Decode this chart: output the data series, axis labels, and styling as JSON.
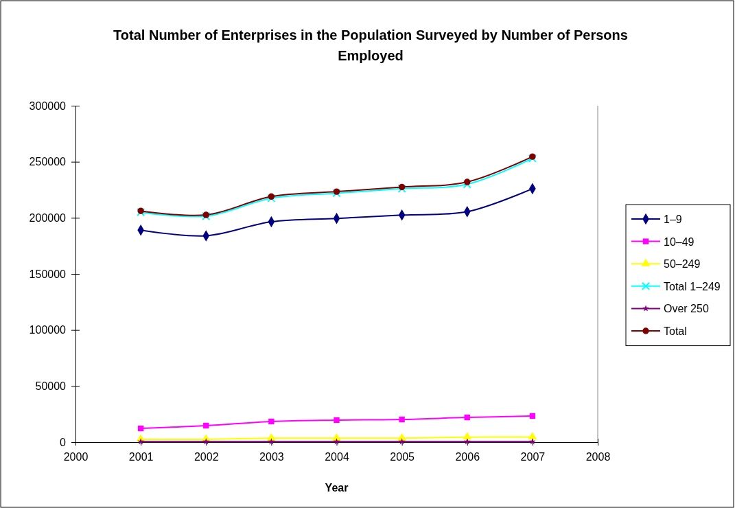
{
  "chart_data": {
    "type": "line",
    "title": "Total Number of Enterprises in the Population Surveyed by Number of Persons Employed",
    "xlabel": "Year",
    "x": [
      2001,
      2002,
      2003,
      2004,
      2005,
      2006,
      2007
    ],
    "xlim": [
      2000,
      2008
    ],
    "xticks": [
      2000,
      2001,
      2002,
      2003,
      2004,
      2005,
      2006,
      2007,
      2008
    ],
    "ylim": [
      0,
      300000
    ],
    "yticks": [
      0,
      50000,
      100000,
      150000,
      200000,
      250000,
      300000
    ],
    "grid": false,
    "legend": "right",
    "series": [
      {
        "name": "1–9",
        "color": "#000080",
        "marker": "diamond",
        "values": [
          189000,
          184000,
          196500,
          199500,
          202500,
          205500,
          226000
        ]
      },
      {
        "name": "10–49",
        "color": "#ff00ff",
        "marker": "square",
        "values": [
          12200,
          14700,
          18400,
          19600,
          20200,
          22000,
          23300
        ]
      },
      {
        "name": "50–249",
        "color": "#ffff00",
        "marker": "triangle",
        "values": [
          2500,
          2500,
          3500,
          3500,
          3500,
          4500,
          4500
        ]
      },
      {
        "name": "Total 1–249",
        "color": "#00ffff",
        "marker": "cross",
        "values": [
          205000,
          201500,
          217500,
          222000,
          226000,
          230000,
          253000
        ]
      },
      {
        "name": "Over 250",
        "color": "#800080",
        "marker": "star",
        "values": [
          400,
          400,
          400,
          400,
          400,
          400,
          400
        ]
      },
      {
        "name": "Total",
        "color": "#800000",
        "marker": "circle",
        "values": [
          206200,
          202600,
          219000,
          223400,
          227500,
          232000,
          254600
        ]
      }
    ]
  }
}
